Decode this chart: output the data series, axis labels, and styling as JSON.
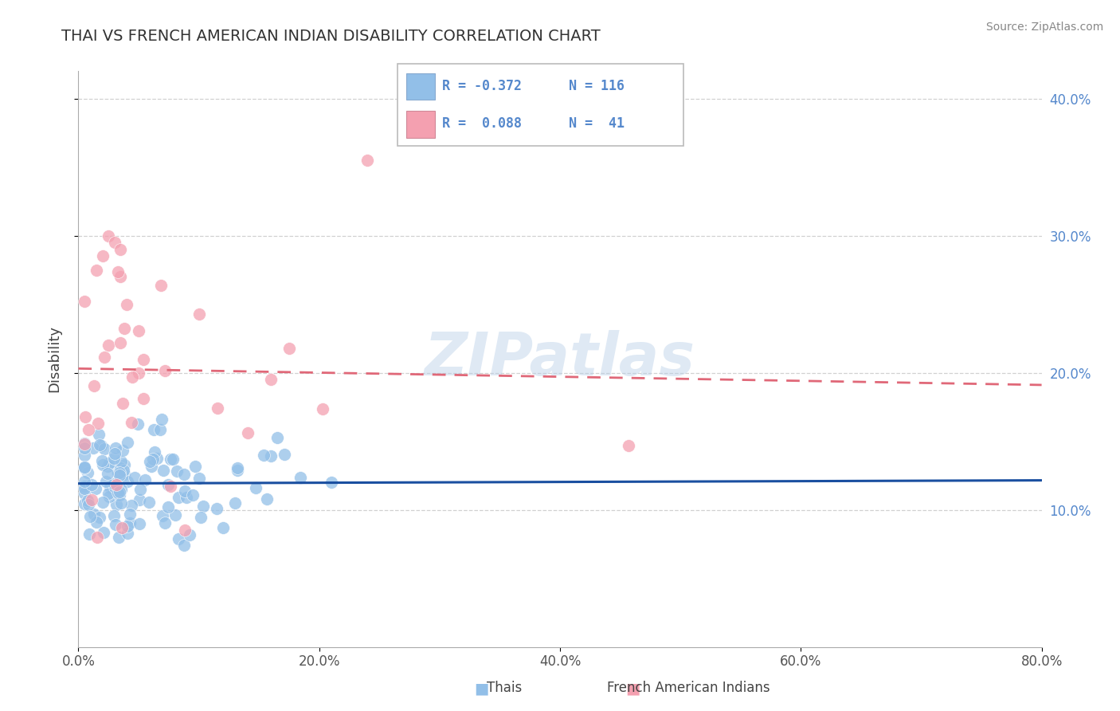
{
  "title": "THAI VS FRENCH AMERICAN INDIAN DISABILITY CORRELATION CHART",
  "source": "Source: ZipAtlas.com",
  "ylabel": "Disability",
  "watermark": "ZIPatlas",
  "xlim": [
    0.0,
    0.8
  ],
  "ylim": [
    0.0,
    0.42
  ],
  "xticks": [
    0.0,
    0.2,
    0.4,
    0.6,
    0.8
  ],
  "xticklabels": [
    "0.0%",
    "20.0%",
    "40.0%",
    "60.0%",
    "80.0%"
  ],
  "yticks": [
    0.1,
    0.2,
    0.3,
    0.4
  ],
  "yticklabels": [
    "10.0%",
    "20.0%",
    "30.0%",
    "40.0%"
  ],
  "grid_color": "#cccccc",
  "background_color": "#ffffff",
  "thai_color": "#92bfe8",
  "french_color": "#f4a0b0",
  "thai_line_color": "#1a4fa0",
  "french_line_color": "#e06878",
  "thai_R": -0.372,
  "thai_N": 116,
  "french_R": 0.088,
  "french_N": 41,
  "legend_R1": "R = -0.372",
  "legend_N1": "N = 116",
  "legend_R2": "R =  0.088",
  "legend_N2": "N =  41",
  "bottom_label1": "Thais",
  "bottom_label2": "French American Indians",
  "tick_color": "#5588cc",
  "title_color": "#333333",
  "title_fontsize": 14
}
